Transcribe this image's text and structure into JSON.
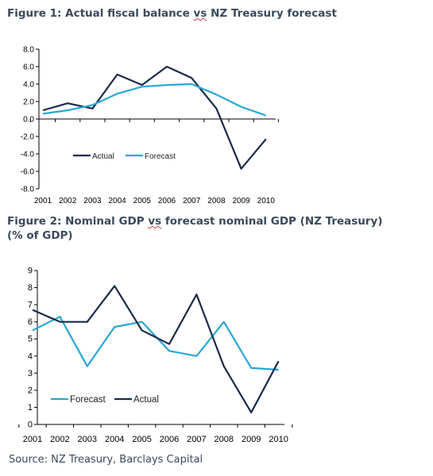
{
  "figure1": {
    "title_pre": "Figure 1: Actual fiscal balance ",
    "title_vs": "vs",
    "title_post": " NZ Treasury forecast"
  },
  "figure2": {
    "title_pre": "Figure 2: Nominal GDP ",
    "title_vs": "vs",
    "title_post": " forecast nominal GDP (NZ Treasury)",
    "title_line2": " (% of GDP)"
  },
  "source": "Source: NZ Treasury, Barclays Capital",
  "colors": {
    "actual": "#1b2a4a",
    "forecast": "#2aa7d4",
    "axis": "#000000"
  },
  "chart_data": [
    {
      "type": "line",
      "title": "Figure 1: Actual fiscal balance vs NZ Treasury forecast",
      "x": [
        "2001",
        "2002",
        "2003",
        "2004",
        "2005",
        "2006",
        "2007",
        "2008",
        "2009",
        "2010"
      ],
      "yticks": [
        "8.0",
        "6.0",
        "4.0",
        "2.0",
        "0.0",
        "-2.0",
        "-4.0",
        "-6.0",
        "-8.0"
      ],
      "ylim": [
        -8,
        8
      ],
      "legend_position": "lower-left",
      "series": [
        {
          "name": "Actual",
          "color": "#1b2a4a",
          "values": [
            1.0,
            1.8,
            1.2,
            5.1,
            3.9,
            6.0,
            4.7,
            1.2,
            -5.7,
            -2.3
          ]
        },
        {
          "name": "Forecast",
          "color": "#2aa7d4",
          "values": [
            0.6,
            1.0,
            1.6,
            2.9,
            3.7,
            3.9,
            4.0,
            2.8,
            1.4,
            0.4
          ]
        }
      ]
    },
    {
      "type": "line",
      "title": "Figure 2: Nominal GDP vs forecast nominal GDP (NZ Treasury) (% of GDP)",
      "x": [
        "2001",
        "2002",
        "2003",
        "2004",
        "2005",
        "2006",
        "2007",
        "2008",
        "2009",
        "2010"
      ],
      "yticks": [
        "9",
        "8",
        "7",
        "6",
        "5",
        "4",
        "3",
        "2",
        "1",
        "0"
      ],
      "ylim": [
        0,
        9
      ],
      "legend_position": "lower-left",
      "series": [
        {
          "name": "Forecast",
          "color": "#2aa7d4",
          "values": [
            5.5,
            6.3,
            3.4,
            5.7,
            6.0,
            4.3,
            4.0,
            6.0,
            3.3,
            3.2
          ]
        },
        {
          "name": "Actual",
          "color": "#1b2a4a",
          "values": [
            6.7,
            6.0,
            6.0,
            8.1,
            5.5,
            4.7,
            7.6,
            3.4,
            0.7,
            3.7
          ]
        }
      ]
    }
  ]
}
